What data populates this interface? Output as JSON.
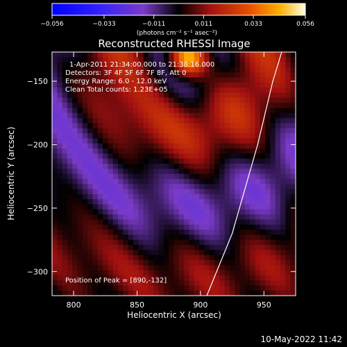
{
  "chart_data": {
    "type": "heatmap",
    "title": "Reconstructed RHESSI Image",
    "xlabel": "Heliocentric X (arcsec)",
    "ylabel": "Heliocentric Y (arcsec)",
    "xlim": [
      783,
      975
    ],
    "ylim": [
      -319,
      -127
    ],
    "x_ticks": [
      800,
      850,
      900,
      950
    ],
    "y_ticks": [
      -150,
      -200,
      -250,
      -300
    ],
    "x_tick_labels": [
      "800",
      "850",
      "900",
      "950"
    ],
    "y_tick_labels": [
      "−150",
      "−200",
      "−250",
      "−300"
    ],
    "colorbar": {
      "range": [
        -0.056,
        0.056
      ],
      "ticks": [
        -0.056,
        -0.033,
        -0.011,
        0.011,
        0.033,
        0.056
      ],
      "tick_labels": [
        "−0.056",
        "−0.033",
        "−0.011",
        "0.011",
        "0.033",
        "0.056"
      ],
      "label": "(photons cm⁻² s⁻¹ asec⁻²)"
    },
    "annotations": [
      "1-Apr-2011 21:34:00.000 to 21:38:16.000",
      "Detectors: 3F 4F 5F 6F 7F 8F, Att 0",
      "Energy Range: 6.0 - 12.0 keV",
      "Clean    Total counts: 1.23E+05"
    ],
    "peak_label": "Position of Peak = [890,-132]",
    "peak_position": [
      890,
      -132
    ],
    "limb_curve": [
      [
        905,
        -319
      ],
      [
        925,
        -270
      ],
      [
        945,
        -200
      ],
      [
        957,
        -150
      ],
      [
        964,
        -127
      ]
    ]
  },
  "footer": {
    "timestamp": "10-May-2022 11:42"
  }
}
